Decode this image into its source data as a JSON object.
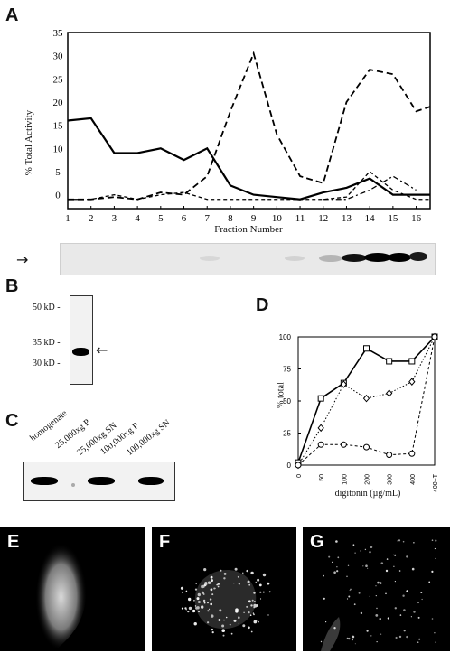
{
  "panels": {
    "A": {
      "label": "A",
      "ylabel": "% Total Activity",
      "xlabel": "Fraction Number",
      "arrow": "→"
    },
    "B": {
      "label": "B",
      "markers": [
        "50 kD -",
        "35 kD -",
        "30 kD -"
      ],
      "arrow": "←"
    },
    "C": {
      "label": "C",
      "lanes": [
        "homogenate",
        "25,000xg P",
        "25,000xg SN",
        "100,000xg P",
        "100,000xg SN"
      ]
    },
    "D": {
      "label": "D",
      "ylabel": "% total",
      "xlabel": "digitonin (µg/mL)"
    },
    "E": {
      "label": "E"
    },
    "F": {
      "label": "F"
    },
    "G": {
      "label": "G"
    }
  },
  "chart_data": [
    {
      "type": "line",
      "panel": "A",
      "ylabel": "% Total Activity",
      "xlabel": "Fraction Number",
      "x_ticks": [
        "1",
        "2",
        "3",
        "4",
        "5",
        "6",
        "7",
        "8",
        "9",
        "10",
        "11",
        "12",
        "13",
        "14",
        "15",
        "16"
      ],
      "y_ticks": [
        "0",
        "5",
        "10",
        "15",
        "20",
        "25",
        "30",
        "35"
      ],
      "xlim": [
        1,
        16.6
      ],
      "ylim": [
        -3,
        35
      ],
      "series": [
        {
          "style": "solid",
          "x": [
            1,
            2,
            3,
            4,
            5,
            6,
            7,
            8,
            9,
            10,
            11,
            12,
            13,
            14,
            15,
            15.7,
            16.6
          ],
          "y": [
            16,
            16.5,
            9,
            9,
            10,
            7.5,
            10,
            2,
            0,
            -0.5,
            -1,
            0.5,
            1.5,
            3.5,
            0,
            0,
            0
          ]
        },
        {
          "style": "long-dash",
          "x": [
            1,
            2,
            3,
            4,
            5,
            6,
            7,
            8,
            9,
            10,
            11,
            12,
            13,
            14,
            15,
            16,
            16.6
          ],
          "y": [
            -1,
            -1,
            -0.5,
            -1,
            0.5,
            0,
            4,
            18,
            30.5,
            13,
            4,
            2.5,
            20,
            27,
            26,
            18,
            19
          ]
        },
        {
          "style": "short-dash",
          "x": [
            1,
            2,
            3,
            4,
            5,
            6,
            7,
            8,
            9,
            10,
            11,
            12,
            13,
            14,
            15,
            16,
            16.6
          ],
          "y": [
            -1,
            -1,
            0,
            -1,
            0,
            0.5,
            -1,
            -1,
            -1,
            -1,
            -1,
            -1,
            -0.5,
            5,
            1,
            -1,
            -1
          ]
        },
        {
          "style": "dash-dot",
          "x": [
            12,
            13,
            14,
            15,
            16
          ],
          "y": [
            -1,
            -1,
            1,
            4,
            1
          ]
        }
      ]
    },
    {
      "type": "line",
      "panel": "D",
      "ylabel": "% total",
      "xlabel": "digitonin (µg/mL)",
      "categories": [
        "0",
        "50",
        "100",
        "200",
        "300",
        "400",
        "400+T"
      ],
      "y_ticks": [
        "0",
        "25",
        "50",
        "75",
        "100"
      ],
      "ylim": [
        0,
        100
      ],
      "series": [
        {
          "marker": "square",
          "style": "solid",
          "values": [
            2,
            52,
            64,
            91,
            81,
            81,
            100
          ]
        },
        {
          "marker": "diamond",
          "style": "dotted",
          "values": [
            0,
            29,
            63,
            52,
            56,
            65,
            100
          ]
        },
        {
          "marker": "circle",
          "style": "dashed",
          "values": [
            0,
            16,
            16,
            14,
            8,
            9,
            100
          ]
        }
      ]
    }
  ]
}
